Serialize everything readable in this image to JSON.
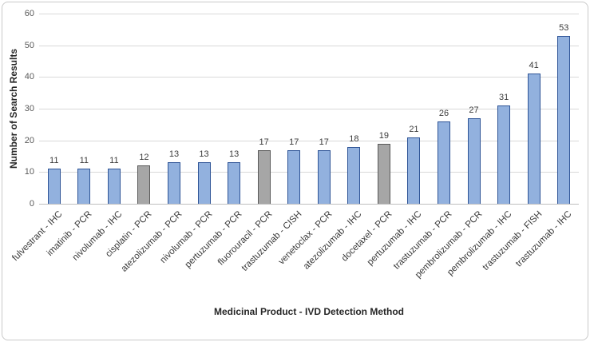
{
  "chart_data": {
    "type": "bar",
    "title": "",
    "xlabel": "Medicinal Product - IVD Detection Method",
    "ylabel": "Number of Search Results",
    "ylim": [
      0,
      60
    ],
    "yticks": [
      0,
      10,
      20,
      30,
      40,
      50,
      60
    ],
    "grid": true,
    "legend": "none",
    "categories": [
      "fulvestrant - IHC",
      "imatinib - PCR",
      "nivolumab - IHC",
      "cisplatin - PCR",
      "atezolizumab - PCR",
      "nivolumab - PCR",
      "pertuzumab - PCR",
      "fluorouracil - PCR",
      "trastuzumab - CISH",
      "venetoclax - PCR",
      "atezolizumab - IHC",
      "docetaxel - PCR",
      "pertuzumab - IHC",
      "trastuzumab - PCR",
      "pembrolizumab - PCR",
      "pembrolizumab - IHC",
      "trastuzumab - FISH",
      "trastuzumab - IHC"
    ],
    "values": [
      11,
      11,
      11,
      12,
      13,
      13,
      13,
      17,
      17,
      17,
      18,
      19,
      21,
      26,
      27,
      31,
      41,
      53
    ],
    "data_labels": [
      "11",
      "11",
      "11",
      "12",
      "13",
      "13",
      "13",
      "17",
      "17",
      "17",
      "18",
      "19",
      "21",
      "26",
      "27",
      "31",
      "41",
      "53"
    ],
    "gray_indices": [
      3,
      7,
      11
    ],
    "colors": {
      "bar_fill": "#92b1de",
      "bar_border": "#2f5597",
      "gray_fill": "#a6a6a6",
      "gray_border": "#595959",
      "gridline": "#d9d9d9",
      "axis_line": "#bfbfbf",
      "tick_text": "#595959",
      "label_text": "#3a3a3a"
    }
  }
}
